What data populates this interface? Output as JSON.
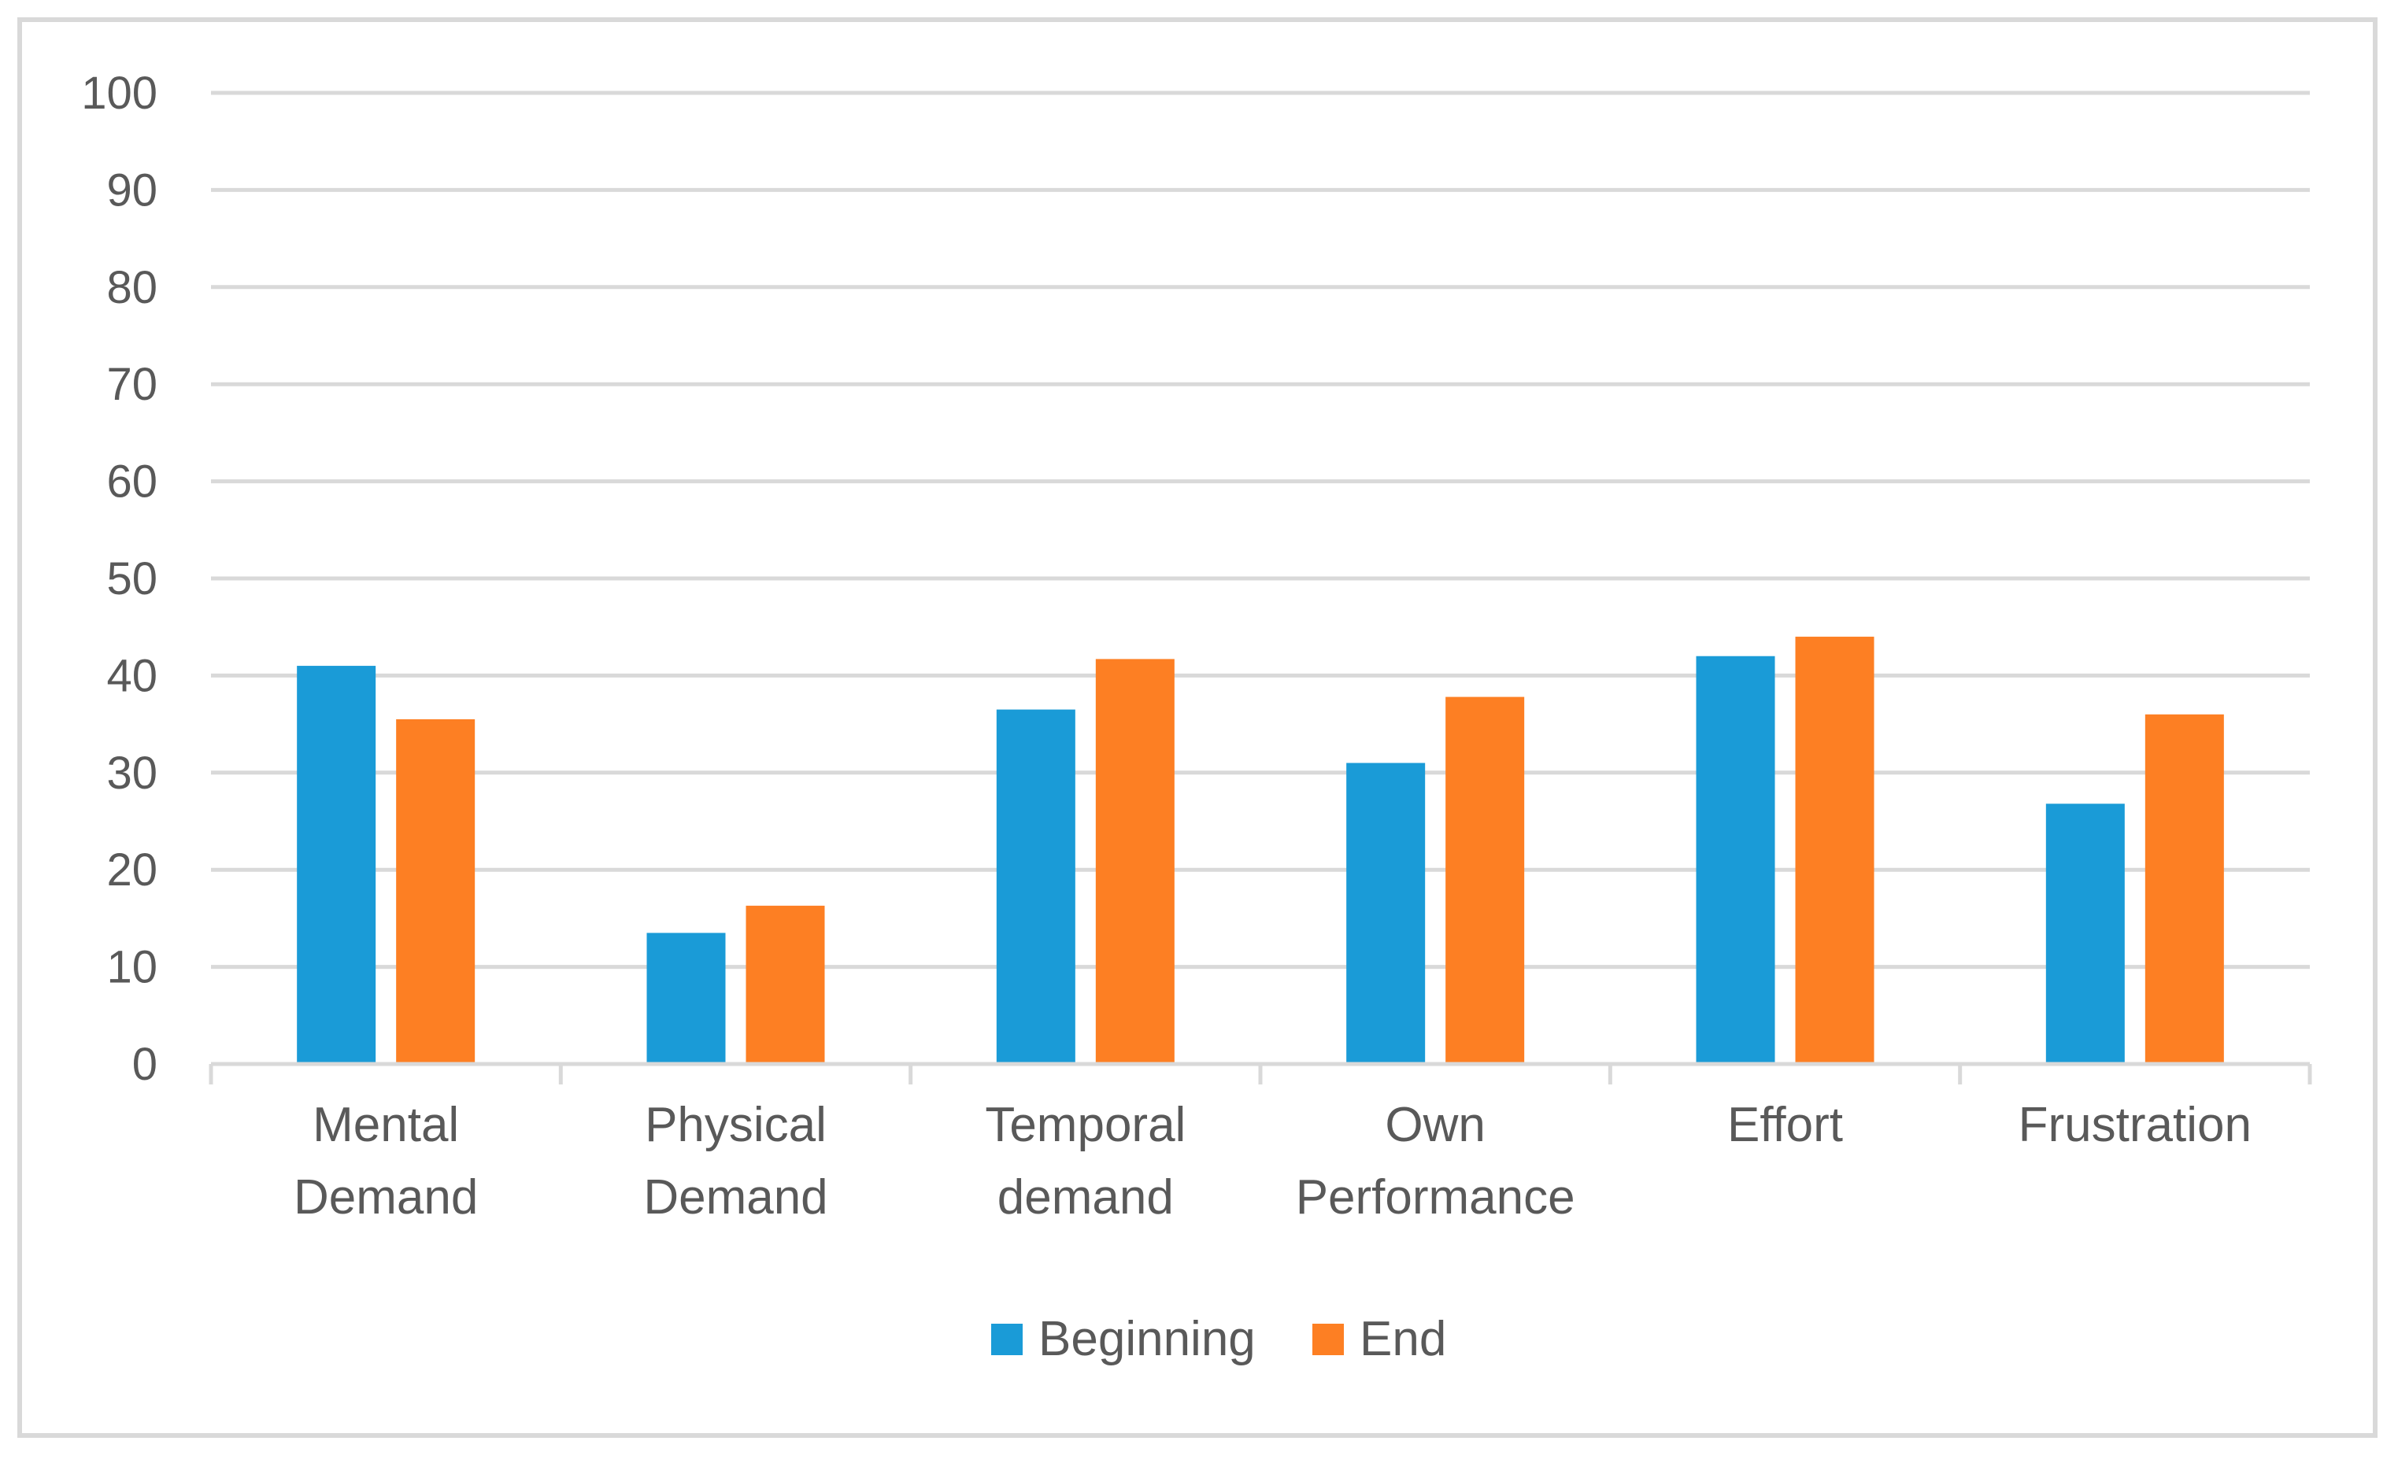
{
  "chart_data": {
    "type": "bar",
    "title": "",
    "xlabel": "",
    "ylabel": "",
    "ylim": [
      0,
      100
    ],
    "yticks": [
      0,
      10,
      20,
      30,
      40,
      50,
      60,
      70,
      80,
      90,
      100
    ],
    "grid": true,
    "legend_position": "bottom",
    "categories": [
      [
        "Mental",
        "Demand"
      ],
      [
        "Physical",
        "Demand"
      ],
      [
        "Temporal",
        "demand"
      ],
      [
        "Own",
        "Performance"
      ],
      [
        "Effort"
      ],
      [
        "Frustration"
      ]
    ],
    "series": [
      {
        "name": "Beginning",
        "color": "#1a9bd7",
        "values": [
          41,
          13.5,
          36.5,
          31,
          42,
          26.8
        ]
      },
      {
        "name": "End",
        "color": "#fd7f23",
        "values": [
          35.5,
          16.3,
          41.7,
          37.8,
          44,
          36
        ]
      }
    ]
  }
}
